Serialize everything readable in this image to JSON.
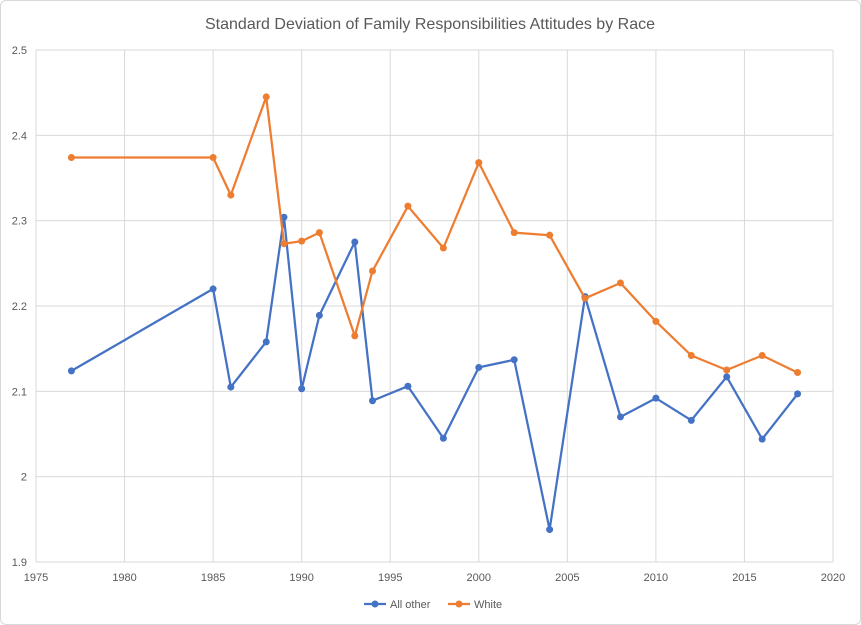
{
  "chart_data": {
    "type": "line",
    "title": "Standard Deviation of Family Responsibilities Attitudes by Race",
    "xlabel": "",
    "ylabel": "",
    "xlim": [
      1975,
      2020
    ],
    "ylim": [
      1.9,
      2.5
    ],
    "x_ticks": [
      "1975",
      "1980",
      "1985",
      "1990",
      "1995",
      "2000",
      "2005",
      "2010",
      "2015",
      "2020"
    ],
    "y_ticks": [
      "1.9",
      "2",
      "2.1",
      "2.2",
      "2.3",
      "2.4",
      "2.5"
    ],
    "grid": true,
    "legend_position": "bottom",
    "series": [
      {
        "name": "All other",
        "color": "#4472c4",
        "points": [
          [
            1977,
            2.124
          ],
          [
            1985,
            2.22
          ],
          [
            1986,
            2.105
          ],
          [
            1988,
            2.158
          ],
          [
            1989,
            2.304
          ],
          [
            1990,
            2.103
          ],
          [
            1991,
            2.189
          ],
          [
            1993,
            2.275
          ],
          [
            1994,
            2.089
          ],
          [
            1996,
            2.106
          ],
          [
            1998,
            2.045
          ],
          [
            2000,
            2.128
          ],
          [
            2002,
            2.137
          ],
          [
            2004,
            1.938
          ],
          [
            2006,
            2.211
          ],
          [
            2008,
            2.07
          ],
          [
            2010,
            2.092
          ],
          [
            2012,
            2.066
          ],
          [
            2014,
            2.117
          ],
          [
            2016,
            2.044
          ],
          [
            2018,
            2.097
          ]
        ]
      },
      {
        "name": "White",
        "color": "#ed7d31",
        "points": [
          [
            1977,
            2.374
          ],
          [
            1985,
            2.374
          ],
          [
            1986,
            2.33
          ],
          [
            1988,
            2.445
          ],
          [
            1989,
            2.273
          ],
          [
            1990,
            2.276
          ],
          [
            1991,
            2.286
          ],
          [
            1993,
            2.165
          ],
          [
            1994,
            2.241
          ],
          [
            1996,
            2.317
          ],
          [
            1998,
            2.268
          ],
          [
            2000,
            2.368
          ],
          [
            2002,
            2.286
          ],
          [
            2004,
            2.283
          ],
          [
            2006,
            2.209
          ],
          [
            2008,
            2.227
          ],
          [
            2010,
            2.182
          ],
          [
            2012,
            2.142
          ],
          [
            2014,
            2.125
          ],
          [
            2016,
            2.142
          ],
          [
            2018,
            2.122
          ]
        ]
      }
    ]
  }
}
